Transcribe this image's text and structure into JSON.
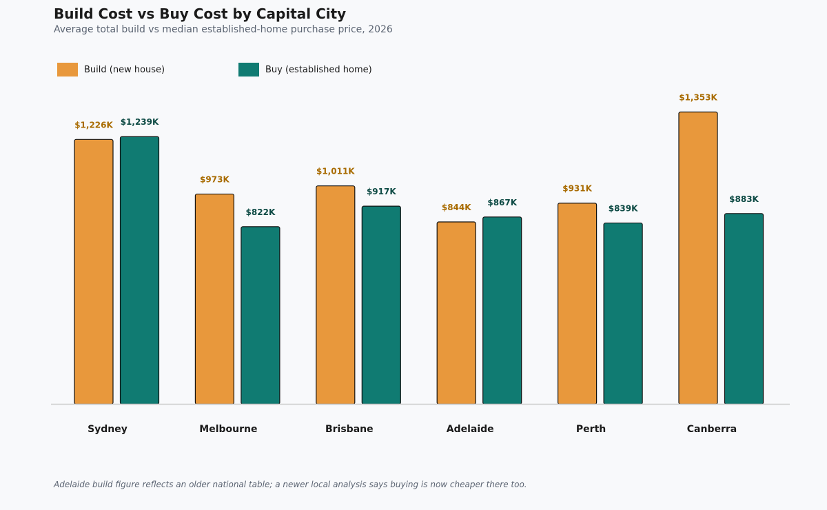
{
  "header": {
    "title": "Build Cost vs Buy Cost by Capital City",
    "subtitle": "Average total build vs median established-home purchase price, 2026"
  },
  "footnote": "Adelaide build figure reflects an older national table; a newer local analysis says buying is now cheaper there too.",
  "colors": {
    "build": "#e8983c",
    "buy": "#107b72",
    "build_label": "#a86b00",
    "buy_label": "#0d4a44",
    "bar_outline": "#111111",
    "baseline": "#cccccc"
  },
  "chart_data": {
    "type": "bar",
    "title": "Build Cost vs Buy Cost by Capital City",
    "subtitle": "Average total build vs median established-home purchase price, 2026",
    "categories": [
      "Sydney",
      "Melbourne",
      "Brisbane",
      "Adelaide",
      "Perth",
      "Canberra"
    ],
    "series": [
      {
        "name": "Build (new house)",
        "values": [
          1226,
          973,
          1011,
          844,
          931,
          1353
        ],
        "labels": [
          "$1,226K",
          "$973K",
          "$1,011K",
          "$844K",
          "$931K",
          "$1,353K"
        ]
      },
      {
        "name": "Buy (established home)",
        "values": [
          1239,
          822,
          917,
          867,
          839,
          883
        ],
        "labels": [
          "$1,239K",
          "$822K",
          "$917K",
          "$867K",
          "$839K",
          "$883K"
        ]
      }
    ],
    "unit": "$K",
    "ylim": [
      0,
      1353
    ],
    "grid": false,
    "legend_position": "top-left"
  }
}
